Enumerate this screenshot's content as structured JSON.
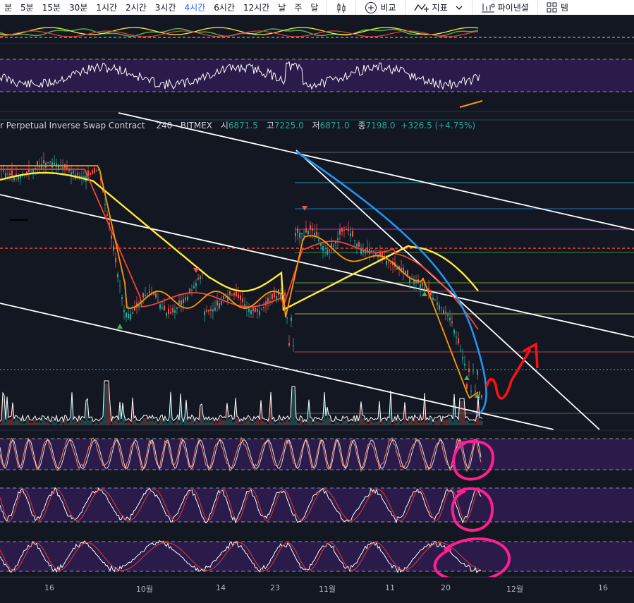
{
  "toolbar": {
    "timeframes": [
      {
        "label": "분",
        "active": false
      },
      {
        "label": "5분",
        "active": false
      },
      {
        "label": "15분",
        "active": false
      },
      {
        "label": "30분",
        "active": false
      },
      {
        "label": "1시간",
        "active": false
      },
      {
        "label": "2시간",
        "active": false
      },
      {
        "label": "3시간",
        "active": false
      },
      {
        "label": "4시간",
        "active": true
      },
      {
        "label": "6시간",
        "active": false
      },
      {
        "label": "12시간",
        "active": false
      },
      {
        "label": "날",
        "active": false
      },
      {
        "label": "주",
        "active": false
      },
      {
        "label": "달",
        "active": false
      }
    ],
    "compare_label": "비교",
    "indicators_label": "지표",
    "pine_label": "파이낸셜",
    "template_label": "템"
  },
  "legend": {
    "symbol": "r Perpetual Inverse Swap Contract",
    "interval": "240",
    "exchange": "BITMEX",
    "open_key": "시",
    "open": "6871.5",
    "high_key": "고",
    "high": "7225.0",
    "low_key": "저",
    "low": "6871.0",
    "close_key": "종",
    "close": "7198.0",
    "change": "+326.5 (+4.75%)"
  },
  "x_axis": {
    "labels": [
      "16",
      "10월",
      "14",
      "23",
      "11월",
      "11",
      "20",
      "12월",
      "16"
    ]
  },
  "colors": {
    "background": "#131722",
    "active_timeframe": "#2962ff",
    "up": "#26a69a",
    "down": "#ef5350",
    "yellow_ma": "#ffeb3b",
    "orange_ma": "#ff9800",
    "red_ma": "#f44336",
    "blue_arc": "#2196f3",
    "indicator_bg": "#2a1b4a",
    "highlight_circle": "#ff1f8e",
    "arrow": "#ff1010"
  },
  "icons": {
    "bar_style": "candles-icon",
    "compare": "plus-circle-icon",
    "indicators": "indicators-icon",
    "pine": "chart-bars-icon",
    "template": "template-icon"
  }
}
